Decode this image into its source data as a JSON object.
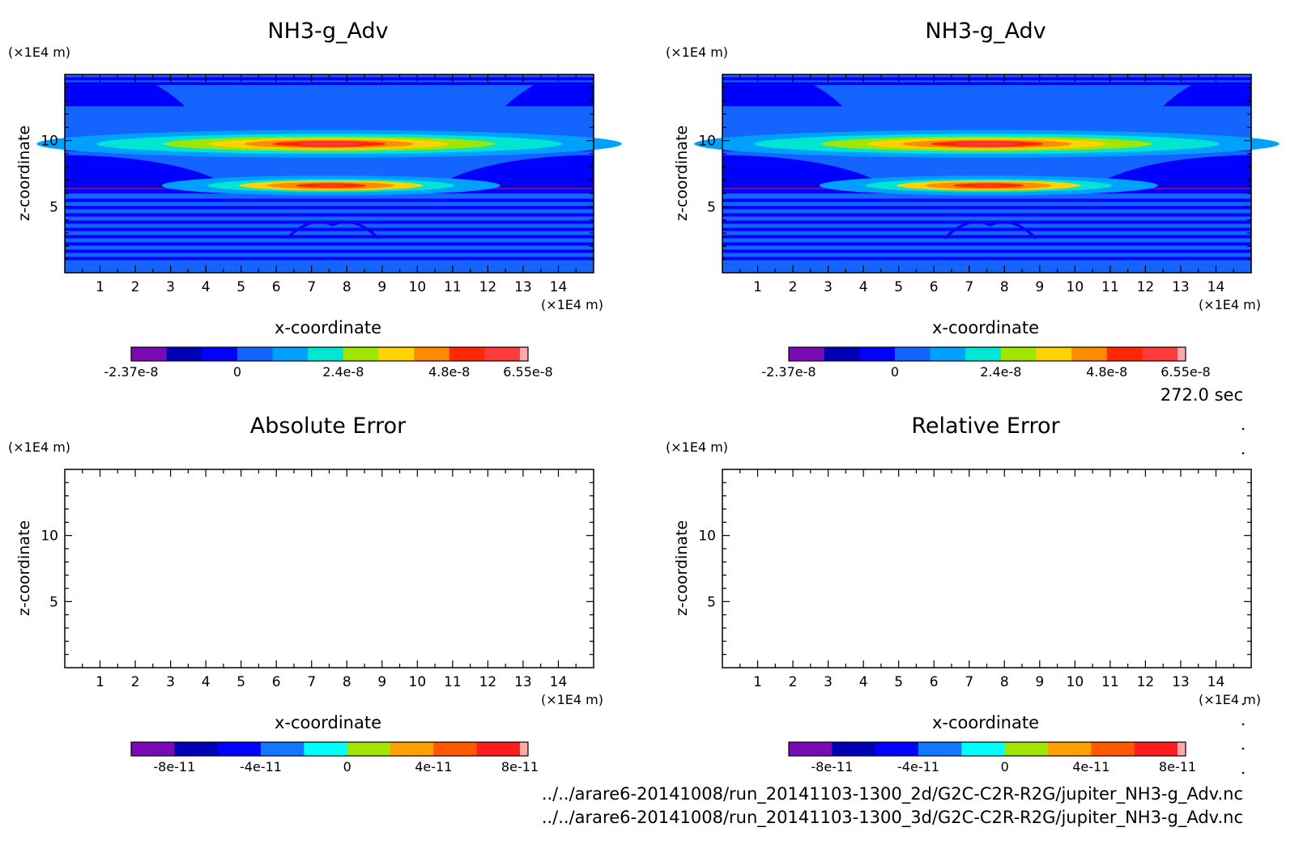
{
  "timestamp": "272.0 sec",
  "files": [
    "../../arare6-20141008/run_20141103-1300_2d/G2C-C2R-R2G/jupiter_NH3-g_Adv.nc",
    "../../arare6-20141008/run_20141103-1300_3d/G2C-C2R-R2G/jupiter_NH3-g_Adv.nc"
  ],
  "chart_data": [
    {
      "type": "heatmap",
      "title": "NH3-g_Adv",
      "xlabel": "x-coordinate",
      "ylabel": "z-coordinate",
      "x_unit": "(×1E4 m)",
      "y_unit": "(×1E4 m)",
      "xlim": [
        0,
        15
      ],
      "ylim": [
        0,
        15
      ],
      "x_ticks": [
        "1",
        "2",
        "3",
        "4",
        "5",
        "6",
        "7",
        "8",
        "9",
        "10",
        "11",
        "12",
        "13",
        "14"
      ],
      "y_ticks": [
        "5",
        "10"
      ],
      "colorbar": {
        "colors": [
          "#7a0ab4",
          "#0000b4",
          "#0000ff",
          "#1464ff",
          "#00a0ff",
          "#00e6d2",
          "#a0e600",
          "#ffd200",
          "#ff8c00",
          "#ff2800",
          "#ff3c3c",
          "#ffaaaa"
        ],
        "labels": [
          "-2.37e-8",
          "0",
          "2.4e-8",
          "4.8e-8",
          "6.55e-8"
        ]
      }
    },
    {
      "type": "heatmap",
      "title": "NH3-g_Adv",
      "xlabel": "x-coordinate",
      "ylabel": "z-coordinate",
      "x_unit": "(×1E4 m)",
      "y_unit": "(×1E4 m)",
      "xlim": [
        0,
        15
      ],
      "ylim": [
        0,
        15
      ],
      "x_ticks": [
        "1",
        "2",
        "3",
        "4",
        "5",
        "6",
        "7",
        "8",
        "9",
        "10",
        "11",
        "12",
        "13",
        "14"
      ],
      "y_ticks": [
        "5",
        "10"
      ],
      "colorbar": {
        "colors": [
          "#7a0ab4",
          "#0000b4",
          "#0000ff",
          "#1464ff",
          "#00a0ff",
          "#00e6d2",
          "#a0e600",
          "#ffd200",
          "#ff8c00",
          "#ff2800",
          "#ff3c3c",
          "#ffaaaa"
        ],
        "labels": [
          "-2.37e-8",
          "0",
          "2.4e-8",
          "4.8e-8",
          "6.55e-8"
        ]
      }
    },
    {
      "type": "heatmap",
      "title": "Absolute Error",
      "xlabel": "x-coordinate",
      "ylabel": "z-coordinate",
      "x_unit": "(×1E4 m)",
      "y_unit": "(×1E4 m)",
      "xlim": [
        0,
        15
      ],
      "ylim": [
        0,
        15
      ],
      "x_ticks": [
        "1",
        "2",
        "3",
        "4",
        "5",
        "6",
        "7",
        "8",
        "9",
        "10",
        "11",
        "12",
        "13",
        "14"
      ],
      "y_ticks": [
        "5",
        "10"
      ],
      "colorbar": {
        "colors": [
          "#7a0ab4",
          "#0000b4",
          "#0000ff",
          "#1478ff",
          "#00ffff",
          "#a0e600",
          "#ffa000",
          "#ff5a00",
          "#ff1e1e",
          "#ffaaaa"
        ],
        "labels": [
          "-8e-11",
          "-4e-11",
          "0",
          "4e-11",
          "8e-11"
        ]
      }
    },
    {
      "type": "heatmap",
      "title": "Relative Error",
      "xlabel": "x-coordinate",
      "ylabel": "z-coordinate",
      "x_unit": "(×1E4 m)",
      "y_unit": "(×1E4 m)",
      "xlim": [
        0,
        15
      ],
      "ylim": [
        0,
        15
      ],
      "x_ticks": [
        "1",
        "2",
        "3",
        "4",
        "5",
        "6",
        "7",
        "8",
        "9",
        "10",
        "11",
        "12",
        "13",
        "14"
      ],
      "y_ticks": [
        "5",
        "10"
      ],
      "colorbar": {
        "colors": [
          "#7a0ab4",
          "#0000b4",
          "#0000ff",
          "#1478ff",
          "#00ffff",
          "#a0e600",
          "#ffa000",
          "#ff5a00",
          "#ff1e1e",
          "#ffaaaa"
        ],
        "labels": [
          "-8e-11",
          "-4e-11",
          "0",
          "4e-11",
          "8e-11"
        ]
      }
    }
  ]
}
